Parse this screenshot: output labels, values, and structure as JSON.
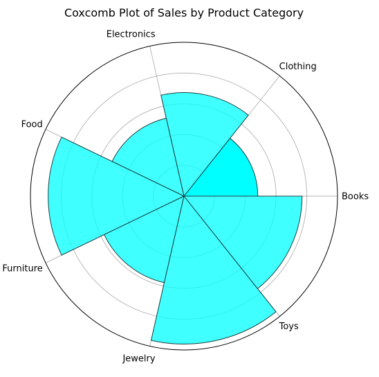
{
  "chart_data": {
    "type": "coxcomb",
    "title": "Coxcomb Plot of Sales by Product Category",
    "categories": [
      "Books",
      "Clothing",
      "Electronics",
      "Food",
      "Furniture",
      "Jewelry",
      "Toys"
    ],
    "values": [
      25,
      35,
      27,
      46,
      30,
      50,
      40
    ],
    "rlim": [
      0,
      52
    ],
    "grid": true,
    "color": "#00ffff"
  }
}
